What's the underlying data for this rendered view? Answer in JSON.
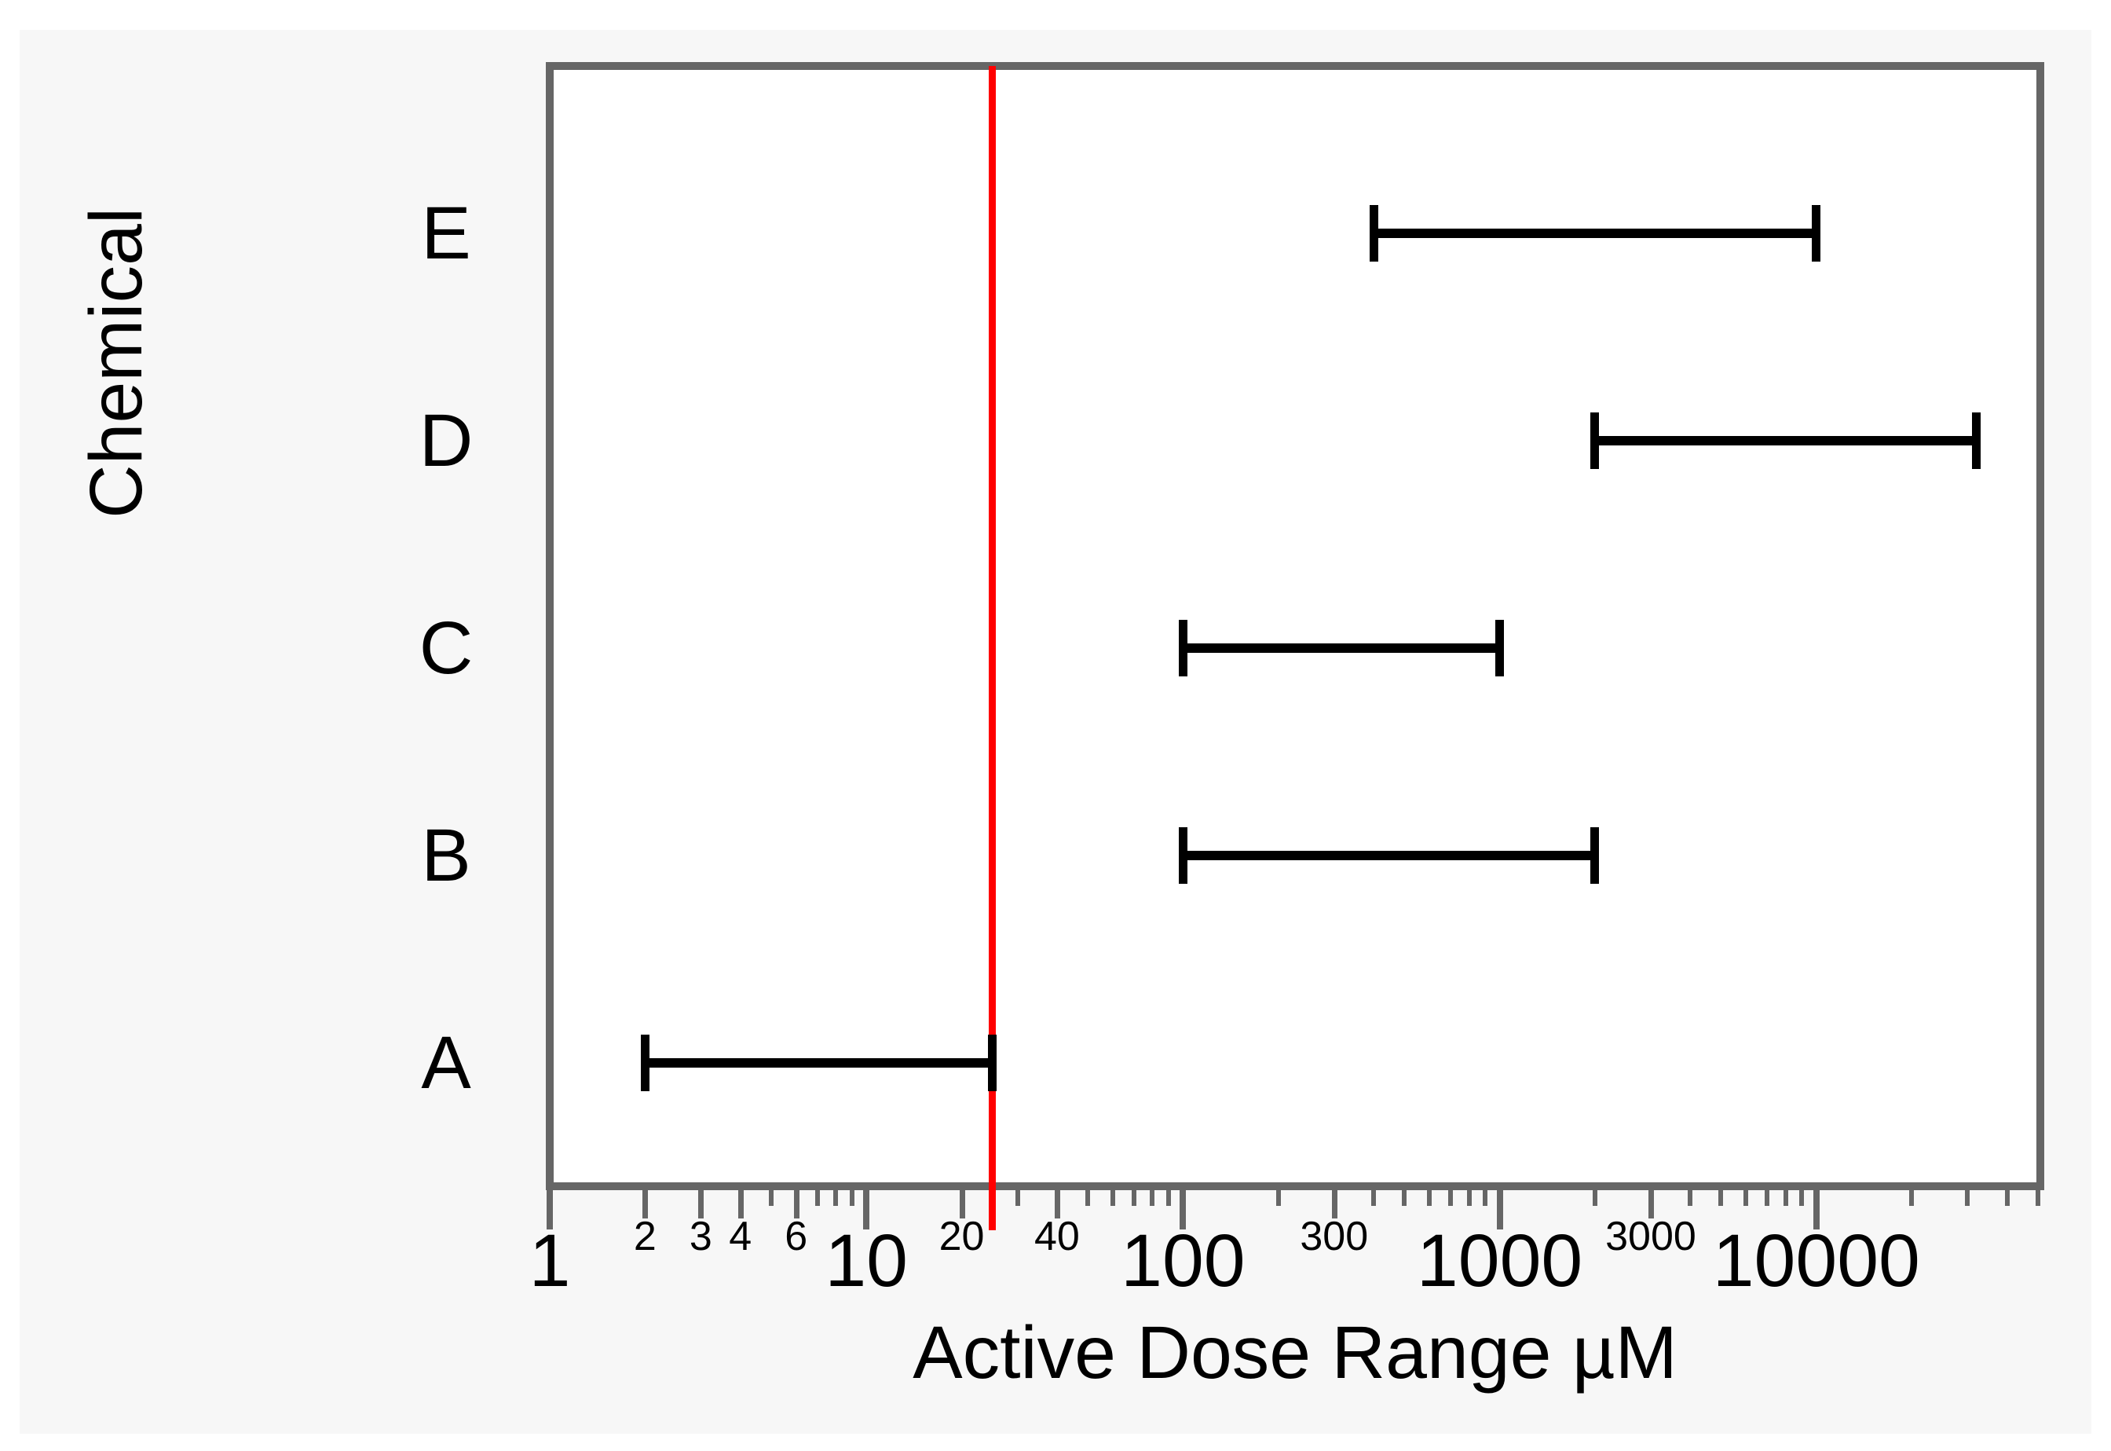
{
  "figure": {
    "colors": {
      "frame_and_ticks": "#666666",
      "panel_background": "#f7f7f7",
      "plot_background": "#ffffff",
      "bar": "#000000",
      "reference_line": "#ff0000",
      "text": "#000000"
    }
  },
  "chart_data": {
    "type": "bar",
    "subtype": "horizontal_interval_range",
    "title": "",
    "xlabel": "Active Dose Range µM",
    "ylabel": "Chemical",
    "x_scale": "log",
    "xlim": [
      1,
      50000
    ],
    "grid": "off",
    "legend": "none",
    "categories": [
      "E",
      "D",
      "C",
      "B",
      "A"
    ],
    "series": [
      {
        "name": "Active Dose Range µM",
        "ranges_uM": {
          "E": [
            400,
            10000
          ],
          "D": [
            2000,
            32000
          ],
          "C": [
            100,
            1000
          ],
          "B": [
            100,
            2000
          ],
          "A": [
            2,
            25
          ]
        }
      }
    ],
    "reference_line": {
      "axis": "x",
      "value": 25,
      "color": "#ff0000"
    },
    "x_ticks_major": [
      1,
      10,
      100,
      1000,
      10000
    ],
    "x_ticks_mid_labeled": [
      2,
      3,
      4,
      6,
      20,
      40,
      300,
      3000
    ],
    "x_ticks_minor": [
      5,
      7,
      8,
      9,
      30,
      50,
      60,
      70,
      80,
      90,
      200,
      400,
      500,
      600,
      700,
      800,
      900,
      2000,
      4000,
      5000,
      6000,
      7000,
      8000,
      9000,
      20000,
      30000,
      40000,
      50000
    ]
  }
}
